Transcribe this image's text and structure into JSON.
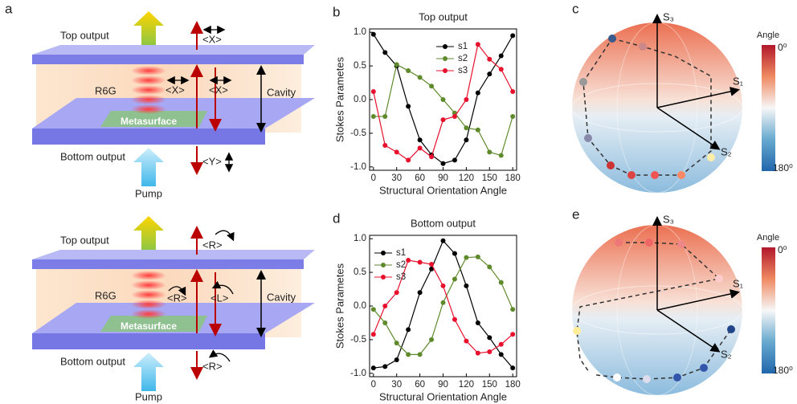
{
  "panel_a": {
    "label": "a",
    "top_setup": {
      "top_output": "Top output",
      "top_polarization": "<X>",
      "gain": "R6G",
      "cavity_polarization_1": "<X>",
      "cavity_polarization_2": "<X>",
      "cavity": "Cavity",
      "metasurface": "Metasurface",
      "bottom_output": "Bottom output",
      "bottom_polarization": "<Y>",
      "pump": "Pump"
    },
    "bottom_setup": {
      "top_output": "Top output",
      "top_polarization": "<R>",
      "gain": "R6G",
      "cavity_polarization_1": "<R>",
      "cavity_polarization_2": "<L>",
      "cavity": "Cavity",
      "metasurface": "Metasurface",
      "bottom_output": "Bottom output",
      "bottom_polarization": "<R>",
      "pump": "Pump"
    }
  },
  "panel_c": {
    "label": "c",
    "s3": "S₃",
    "s1": "S₁",
    "s2": "S₂",
    "colorbar_title": "Angle",
    "colorbar_min": "0⁰",
    "colorbar_max": "180⁰"
  },
  "panel_e": {
    "label": "e",
    "s3": "S₃",
    "s1": "S₁",
    "s2": "S₂",
    "colorbar_title": "Angle",
    "colorbar_min": "0⁰",
    "colorbar_max": "180⁰"
  },
  "chart_data": [
    {
      "type": "line",
      "panel_label": "b",
      "title": "Top output",
      "x_label": "Structural Orientation Angle",
      "y_label": "Stokes Parametes",
      "x": [
        0,
        15,
        30,
        45,
        60,
        75,
        90,
        105,
        120,
        135,
        150,
        165,
        180
      ],
      "series": [
        {
          "name": "s1",
          "color": "#000000",
          "values": [
            0.97,
            0.7,
            0.5,
            -0.1,
            -0.6,
            -0.82,
            -0.95,
            -0.9,
            -0.6,
            0.1,
            0.38,
            0.65,
            0.95
          ]
        },
        {
          "name": "s2",
          "color": "#5f8a2c",
          "values": [
            -0.25,
            -0.25,
            0.52,
            0.43,
            0.33,
            0.2,
            0.0,
            -0.2,
            -0.42,
            -0.45,
            -0.78,
            -0.83,
            -0.25
          ]
        },
        {
          "name": "s3",
          "color": "#e8112d",
          "values": [
            0.12,
            -0.68,
            -0.78,
            -0.9,
            -0.72,
            -0.85,
            -0.3,
            -0.25,
            0.0,
            0.82,
            0.6,
            0.45,
            0.12
          ]
        }
      ],
      "xlim": [
        -5,
        185
      ],
      "xticks": [
        0,
        30,
        60,
        90,
        120,
        150,
        180
      ],
      "ylim": [
        -1.05,
        1.05
      ],
      "yticks": [
        {
          "value": -1,
          "label": "-1.0"
        },
        {
          "value": -0.5,
          "label": "-0.5"
        },
        {
          "value": 0,
          "label": "0.0"
        },
        {
          "value": 0.5,
          "label": "0.5"
        },
        {
          "value": 1,
          "label": "1.0"
        }
      ],
      "legend": "upper right",
      "grid": false
    },
    {
      "type": "line",
      "panel_label": "d",
      "title": "Bottom output",
      "x_label": "Structural Orientation Angle",
      "y_label": "Stokes Parametes",
      "x": [
        0,
        15,
        30,
        45,
        60,
        75,
        90,
        105,
        120,
        135,
        150,
        165,
        180
      ],
      "series": [
        {
          "name": "s1",
          "color": "#000000",
          "values": [
            -0.92,
            -0.9,
            -0.8,
            -0.35,
            0.2,
            0.55,
            0.97,
            0.78,
            0.3,
            -0.25,
            -0.47,
            -0.72,
            -0.92
          ]
        },
        {
          "name": "s2",
          "color": "#5f8a2c",
          "values": [
            -0.05,
            -0.25,
            -0.55,
            -0.72,
            -0.72,
            -0.5,
            0.05,
            0.4,
            0.72,
            0.73,
            0.58,
            0.35,
            -0.05
          ]
        },
        {
          "name": "s3",
          "color": "#e8112d",
          "values": [
            -0.42,
            0.0,
            0.2,
            0.68,
            0.65,
            0.62,
            0.3,
            -0.2,
            -0.52,
            -0.7,
            -0.68,
            -0.57,
            -0.42
          ]
        }
      ],
      "xlim": [
        -5,
        185
      ],
      "xticks": [
        0,
        30,
        60,
        90,
        120,
        150,
        180
      ],
      "ylim": [
        -1.05,
        1.05
      ],
      "yticks": [
        {
          "value": -1,
          "label": "-1.0"
        },
        {
          "value": -0.5,
          "label": "-0.5"
        },
        {
          "value": 0,
          "label": "0.0"
        },
        {
          "value": 0.5,
          "label": "0.5"
        },
        {
          "value": 1,
          "label": "1.0"
        }
      ],
      "legend": "upper left",
      "grid": false
    }
  ]
}
